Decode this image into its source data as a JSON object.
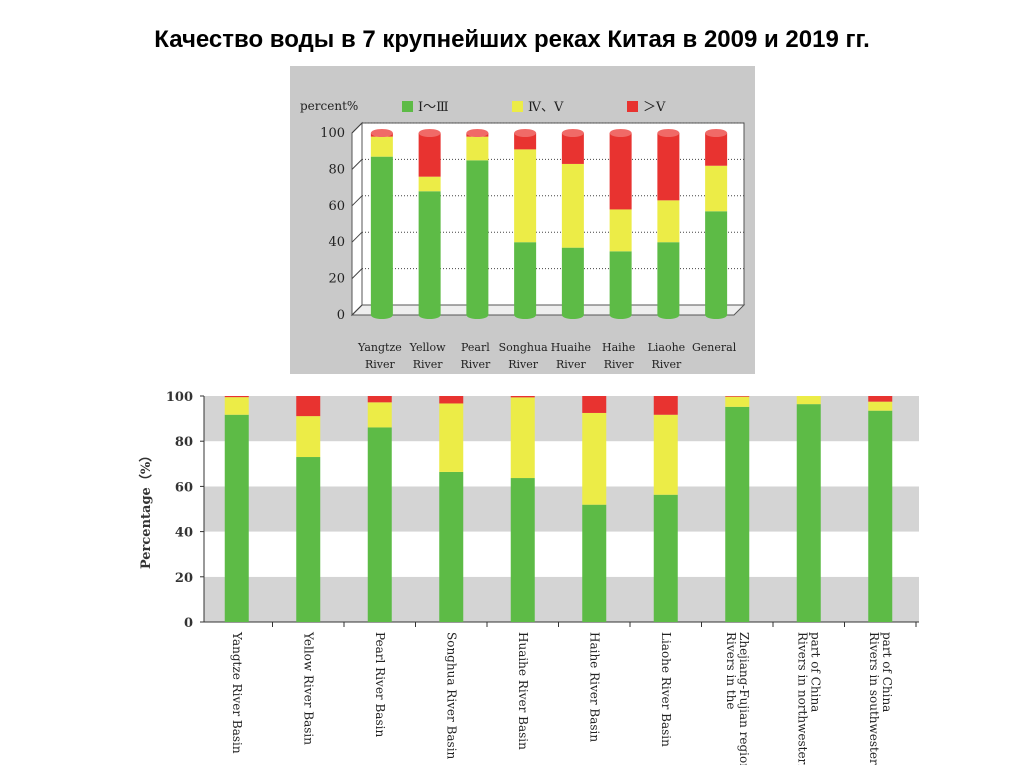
{
  "slide": {
    "title": "Качество воды в 7 крупнейших реках Китая в 2009 и 2019 гг."
  },
  "colors": {
    "green": "#5dbb46",
    "yellow": "#ecec47",
    "red": "#e83330",
    "panel": "#c9c9c9",
    "band": "#d4d4d4"
  },
  "chart_data": [
    {
      "type": "bar",
      "stacked": true,
      "year": "2009",
      "ylabel": "percent%",
      "ylim": [
        0,
        100
      ],
      "yticks": [
        0,
        20,
        40,
        60,
        80,
        100
      ],
      "legend": [
        "Ⅰ～Ⅲ",
        "Ⅳ、Ⅴ",
        "＞Ⅴ"
      ],
      "categories": [
        [
          "Yangtze",
          "River"
        ],
        [
          "Yellow",
          "River"
        ],
        [
          "Pearl",
          "River"
        ],
        [
          "Songhua",
          "River"
        ],
        [
          "Huaihe",
          "River"
        ],
        [
          "Haihe",
          "River"
        ],
        [
          "Liaohe",
          "River"
        ],
        [
          "General",
          ""
        ]
      ],
      "series": [
        {
          "name": "Ⅰ～Ⅲ",
          "color": "#5dbb46",
          "values": [
            87,
            68,
            85,
            40,
            37,
            35,
            40,
            57
          ]
        },
        {
          "name": "Ⅳ、Ⅴ",
          "color": "#ecec47",
          "values": [
            11,
            8,
            13,
            51,
            46,
            23,
            23,
            25
          ]
        },
        {
          "name": "＞Ⅴ",
          "color": "#e83330",
          "values": [
            2,
            24,
            2,
            9,
            17,
            42,
            37,
            18
          ]
        }
      ]
    },
    {
      "type": "bar",
      "stacked": true,
      "year": "2019",
      "ylabel": "Percentage（%）",
      "ylim": [
        0,
        100
      ],
      "yticks": [
        0,
        20,
        40,
        60,
        80,
        100
      ],
      "categories": [
        [
          "Yangtze River Basin"
        ],
        [
          "Yellow River Basin"
        ],
        [
          "Pearl River Basin"
        ],
        [
          "Songhua River Basin"
        ],
        [
          "Huaihe River Basin"
        ],
        [
          "Haihe River Basin"
        ],
        [
          "Liaohe River Basin"
        ],
        [
          "Rivers in the",
          "Zhejiang-Fujian region"
        ],
        [
          "Rivers in northwestern",
          "part of China"
        ],
        [
          "Rivers in southwestern",
          "part of China"
        ]
      ],
      "series": [
        {
          "name": "Ⅰ～Ⅲ",
          "color": "#5dbb46",
          "values": [
            91.7,
            73.0,
            86.1,
            66.4,
            63.7,
            51.9,
            56.3,
            95.2,
            96.4,
            93.5
          ]
        },
        {
          "name": "Ⅳ、Ⅴ",
          "color": "#ecec47",
          "values": [
            7.8,
            18.1,
            11.1,
            30.3,
            35.7,
            40.6,
            35.4,
            4.5,
            3.6,
            4.0
          ]
        },
        {
          "name": "＞Ⅴ",
          "color": "#e83330",
          "values": [
            0.5,
            8.9,
            2.8,
            3.3,
            0.6,
            7.5,
            8.3,
            0.3,
            0.0,
            2.5
          ]
        }
      ]
    }
  ]
}
